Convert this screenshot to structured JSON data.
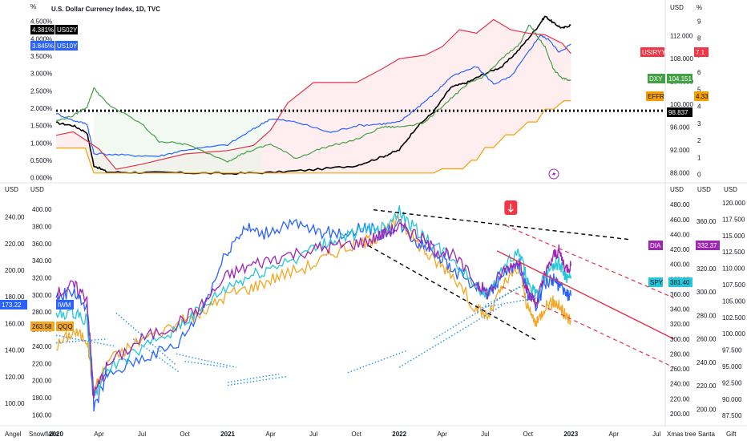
{
  "top_panel": {
    "title": "U.S. Dollar Currency Index, 1D, TVC",
    "left_unit": "%",
    "right_unit": "USD",
    "right2_unit": "%"
  },
  "bottom_panel": {
    "left_unit_1": "USD",
    "left_unit_2": "USD",
    "right_unit_1": "USD",
    "right_unit_2": "USD",
    "right_unit_3": "USD"
  },
  "bottom_bar": {
    "left_labels": [
      "Angel",
      "Snowflake"
    ],
    "right_labels": [
      "Xmas tree",
      "Santa",
      "Gift"
    ]
  },
  "colors": {
    "us02y": "#000000",
    "us10y": "#2962ff",
    "usirr": "#e0344a",
    "dxy": "#43a047",
    "effr": "#f59f00",
    "dia": "#9c27b0",
    "spy": "#26c6da",
    "iwm": "#2962ff",
    "qqq": "#f5a623",
    "trend": "#000000",
    "channel": "#e0344a",
    "dotted": "#2196f3"
  },
  "chart_data": [
    {
      "type": "line",
      "x_ticks": [
        "2020",
        "Apr",
        "Jul",
        "Oct",
        "2021",
        "Apr",
        "Jul",
        "Oct",
        "2022",
        "Apr",
        "Jul",
        "Oct",
        "2023",
        "Apr",
        "Jul"
      ],
      "x_range": [
        2020.0,
        2023.55
      ],
      "left_axis": {
        "ticks": [
          "0.000%",
          "0.500%",
          "1.000%",
          "1.500%",
          "2.000%",
          "2.500%",
          "3.000%",
          "3.500%",
          "4.000%",
          "4.500%"
        ],
        "range": [
          -0.1,
          4.7
        ]
      },
      "right_axis": {
        "ticks": [
          "88.000",
          "92.000",
          "96.000",
          "100.000",
          "104.000",
          "108.000",
          "112.000"
        ],
        "range": [
          86.5,
          115.7
        ]
      },
      "right2_axis": {
        "ticks": [
          "0",
          "1",
          "2",
          "3",
          "4",
          "5",
          "6",
          "7",
          "8",
          "9"
        ],
        "range": [
          -0.4,
          9.4
        ]
      },
      "reference_line": {
        "value": 98.837,
        "axis": "right"
      },
      "series": [
        {
          "name": "US02Y",
          "axis": "left",
          "last_label": "4.381%",
          "x": [
            2020.0,
            2020.1,
            2020.18,
            2020.22,
            2020.3,
            2020.5,
            2020.75,
            2021.0,
            2021.25,
            2021.5,
            2021.75,
            2021.9,
            2022.0,
            2022.1,
            2022.2,
            2022.3,
            2022.4,
            2022.5,
            2022.6,
            2022.7,
            2022.8,
            2022.85,
            2022.9,
            2022.95,
            2023.0
          ],
          "values": [
            1.58,
            1.5,
            1.3,
            0.35,
            0.16,
            0.15,
            0.14,
            0.12,
            0.15,
            0.23,
            0.35,
            0.6,
            0.8,
            1.45,
            1.9,
            2.6,
            2.75,
            3.0,
            3.2,
            3.7,
            4.3,
            4.65,
            4.45,
            4.3,
            4.4
          ]
        },
        {
          "name": "US10Y",
          "axis": "left",
          "last_label": "3.845%",
          "x": [
            2020.0,
            2020.1,
            2020.18,
            2020.22,
            2020.4,
            2020.6,
            2020.75,
            2021.0,
            2021.15,
            2021.25,
            2021.4,
            2021.6,
            2021.75,
            2021.9,
            2022.0,
            2022.1,
            2022.2,
            2022.3,
            2022.45,
            2022.55,
            2022.65,
            2022.75,
            2022.82,
            2022.88,
            2022.93,
            2023.0
          ],
          "values": [
            1.85,
            1.65,
            1.55,
            0.7,
            0.65,
            0.62,
            0.8,
            0.95,
            1.4,
            1.7,
            1.6,
            1.3,
            1.5,
            1.55,
            1.6,
            2.0,
            2.4,
            2.9,
            3.2,
            2.7,
            2.9,
            3.6,
            4.1,
            3.95,
            3.6,
            3.85
          ]
        },
        {
          "name": "DXY",
          "axis": "right",
          "last_label": "104.151",
          "x": [
            2020.0,
            2020.1,
            2020.18,
            2020.22,
            2020.3,
            2020.5,
            2020.6,
            2020.75,
            2021.0,
            2021.1,
            2021.25,
            2021.4,
            2021.55,
            2021.75,
            2021.9,
            2022.0,
            2022.15,
            2022.3,
            2022.4,
            2022.5,
            2022.6,
            2022.7,
            2022.76,
            2022.8,
            2022.85,
            2022.9,
            2022.95,
            2023.0
          ],
          "values": [
            97.0,
            98.0,
            99.5,
            102.8,
            100.0,
            96.5,
            93.5,
            93.0,
            90.0,
            91.5,
            93.0,
            90.5,
            92.3,
            93.8,
            96.0,
            96.0,
            96.8,
            101.0,
            103.5,
            105.0,
            108.0,
            110.5,
            114.0,
            112.0,
            110.0,
            106.0,
            104.5,
            104.151
          ]
        },
        {
          "name": "USIRYY",
          "axis": "right2",
          "last_label": "7.1",
          "x": [
            2020.0,
            2020.1,
            2020.25,
            2020.35,
            2020.5,
            2020.75,
            2021.0,
            2021.15,
            2021.25,
            2021.35,
            2021.5,
            2021.75,
            2021.9,
            2022.0,
            2022.15,
            2022.25,
            2022.35,
            2022.45,
            2022.55,
            2022.65,
            2022.75,
            2022.85,
            2022.95,
            2023.0
          ],
          "values": [
            2.3,
            2.5,
            1.5,
            0.3,
            0.6,
            1.2,
            1.4,
            1.7,
            2.6,
            4.2,
            5.4,
            5.4,
            6.2,
            6.8,
            7.0,
            7.5,
            8.5,
            8.3,
            9.1,
            8.5,
            8.3,
            8.2,
            7.7,
            7.1
          ]
        },
        {
          "name": "EFFR",
          "axis": "right2",
          "last_label": "4.33",
          "x": [
            2020.0,
            2020.17,
            2020.2,
            2020.22,
            2022.2,
            2022.25,
            2022.37,
            2022.42,
            2022.45,
            2022.5,
            2022.55,
            2022.62,
            2022.67,
            2022.75,
            2022.8,
            2022.85,
            2022.9,
            2022.96,
            2023.0
          ],
          "values": [
            1.55,
            1.55,
            0.65,
            0.08,
            0.08,
            0.33,
            0.33,
            0.83,
            0.83,
            1.58,
            1.58,
            2.33,
            2.33,
            3.08,
            3.08,
            3.83,
            3.83,
            4.33,
            4.33
          ]
        }
      ]
    },
    {
      "type": "line",
      "x_ticks": [
        "2020",
        "Apr",
        "Jul",
        "Oct",
        "2021",
        "Apr",
        "Jul",
        "Oct",
        "2022",
        "Apr",
        "Jul",
        "Oct",
        "2023",
        "Apr",
        "Jul"
      ],
      "x_range": [
        2020.0,
        2023.55
      ],
      "axes": {
        "iwm": {
          "side": "left",
          "ticks": [
            "100.00",
            "120.00",
            "140.00",
            "160.00",
            "180.00",
            "200.00",
            "220.00",
            "240.00"
          ],
          "range": [
            85,
            256
          ]
        },
        "qqq": {
          "side": "left",
          "ticks": [
            "160.00",
            "180.00",
            "200.00",
            "220.00",
            "240.00",
            "260.00",
            "280.00",
            "300.00",
            "320.00",
            "340.00",
            "360.00",
            "380.00",
            "400.00"
          ],
          "range": [
            150,
            416
          ]
        },
        "spy": {
          "side": "right",
          "ticks": [
            "200.00",
            "220.00",
            "240.00",
            "260.00",
            "280.00",
            "300.00",
            "320.00",
            "340.00",
            "360.00",
            "380.00",
            "400.00",
            "420.00",
            "440.00",
            "460.00",
            "480.00"
          ],
          "range": [
            187,
            492
          ]
        },
        "qqq_r": {
          "side": "right",
          "ticks": [
            "200.00",
            "220.00",
            "240.00",
            "260.00",
            "280.00",
            "300.00",
            "320.00",
            "340.00",
            "360.00"
          ],
          "range": [
            188,
            382
          ]
        },
        "dia": {
          "side": "right",
          "ticks": [
            "87.500",
            "90.000",
            "92.500",
            "95.000",
            "97.500",
            "100.000",
            "102.500",
            "105.000",
            "107.500",
            "110.000",
            "112.500",
            "115.000",
            "117.500",
            "120.000"
          ],
          "range": [
            86.3,
            121.1
          ]
        }
      },
      "series": [
        {
          "name": "DIA",
          "axis": "spy",
          "last_label": "332.37",
          "x": [
            2020.0,
            2020.1,
            2020.18,
            2020.22,
            2020.3,
            2020.5,
            2020.7,
            2020.85,
            2021.0,
            2021.15,
            2021.3,
            2021.5,
            2021.65,
            2021.8,
            2021.9,
            2022.0,
            2022.1,
            2022.2,
            2022.3,
            2022.45,
            2022.52,
            2022.6,
            2022.7,
            2022.75,
            2022.8,
            2022.85,
            2022.9,
            2022.93,
            2022.97,
            2023.0
          ],
          "values": [
            360,
            372,
            355,
            225,
            265,
            300,
            320,
            345,
            385,
            400,
            410,
            420,
            425,
            430,
            440,
            450,
            440,
            420,
            415,
            375,
            360,
            390,
            405,
            360,
            350,
            385,
            412,
            418,
            395,
            398
          ]
        },
        {
          "name": "SPY",
          "axis": "spy",
          "last_label": "381.40",
          "x": [
            2020.0,
            2020.1,
            2020.18,
            2020.22,
            2020.3,
            2020.5,
            2020.7,
            2020.85,
            2021.0,
            2021.15,
            2021.3,
            2021.5,
            2021.65,
            2021.8,
            2021.9,
            2022.0,
            2022.1,
            2022.2,
            2022.3,
            2022.45,
            2022.52,
            2022.6,
            2022.7,
            2022.75,
            2022.8,
            2022.85,
            2022.9,
            2022.93,
            2022.97,
            2023.0
          ],
          "values": [
            330,
            337,
            325,
            225,
            260,
            285,
            315,
            340,
            370,
            385,
            400,
            420,
            435,
            445,
            450,
            470,
            445,
            425,
            410,
            370,
            360,
            395,
            415,
            375,
            358,
            385,
            400,
            402,
            385,
            381
          ]
        },
        {
          "name": "QQQ",
          "axis": "spy",
          "last_label": "263.58",
          "x": [
            2020.0,
            2020.1,
            2020.18,
            2020.22,
            2020.3,
            2020.5,
            2020.7,
            2020.85,
            2021.0,
            2021.15,
            2021.3,
            2021.5,
            2021.65,
            2021.8,
            2021.9,
            2022.0,
            2022.1,
            2022.2,
            2022.3,
            2022.45,
            2022.52,
            2022.6,
            2022.7,
            2022.75,
            2022.8,
            2022.85,
            2022.9,
            2022.93,
            2022.97,
            2023.0
          ],
          "values": [
            290,
            310,
            300,
            230,
            270,
            300,
            320,
            335,
            360,
            370,
            385,
            400,
            420,
            430,
            440,
            460,
            430,
            405,
            390,
            340,
            330,
            370,
            395,
            340,
            320,
            345,
            350,
            345,
            330,
            325
          ]
        },
        {
          "name": "IWM",
          "axis": "spy",
          "last_label": "173.22",
          "x": [
            2020.0,
            2020.1,
            2020.18,
            2020.22,
            2020.3,
            2020.5,
            2020.7,
            2020.85,
            2021.0,
            2021.1,
            2021.2,
            2021.35,
            2021.5,
            2021.65,
            2021.8,
            2021.9,
            2022.0,
            2022.1,
            2022.2,
            2022.3,
            2022.45,
            2022.52,
            2022.6,
            2022.7,
            2022.75,
            2022.8,
            2022.85,
            2022.9,
            2022.93,
            2022.97,
            2023.0
          ],
          "values": [
            355,
            365,
            340,
            210,
            250,
            275,
            290,
            340,
            420,
            450,
            440,
            455,
            445,
            440,
            450,
            440,
            455,
            430,
            420,
            395,
            370,
            360,
            385,
            400,
            360,
            345,
            375,
            380,
            372,
            360,
            358
          ]
        }
      ]
    }
  ]
}
